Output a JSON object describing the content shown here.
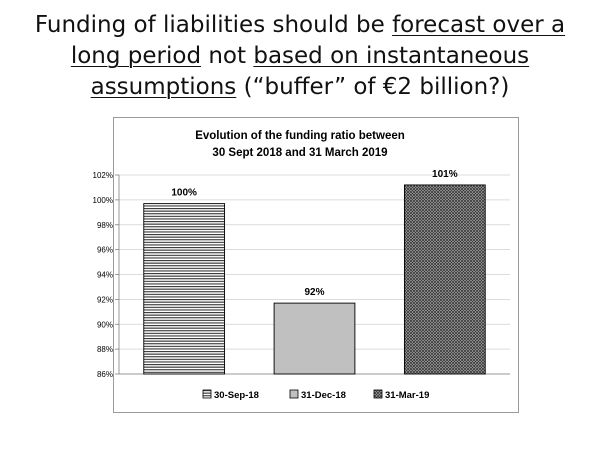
{
  "slide": {
    "title_parts": [
      {
        "text": "Funding of liabilities should be ",
        "u": false
      },
      {
        "text": "forecast over a long period",
        "u": true
      },
      {
        "text": " not ",
        "u": false
      },
      {
        "text": "based on instantaneous assumptions",
        "u": true
      },
      {
        "text": " (“buffer” of €2 billion?)",
        "u": false
      }
    ]
  },
  "chart_data": {
    "type": "bar",
    "title": "Evolution of the funding ratio between",
    "subtitle": "30 Sept 2018 and 31 March 2019",
    "categories": [
      "30-Sep-18",
      "31-Dec-18",
      "31-Mar-19"
    ],
    "values": [
      99.7,
      91.7,
      101.2
    ],
    "data_labels": [
      "100%",
      "92%",
      "101%"
    ],
    "ylim": [
      86,
      102
    ],
    "yticks": [
      86,
      88,
      90,
      92,
      94,
      96,
      98,
      100,
      102
    ],
    "ytick_labels": [
      "86%",
      "88%",
      "90%",
      "92%",
      "94%",
      "96%",
      "98%",
      "100%",
      "102%"
    ],
    "grid": true,
    "legend": {
      "position": "bottom",
      "entries": [
        "30-Sep-18",
        "31-Dec-18",
        "31-Mar-19"
      ]
    },
    "patterns": [
      "horizontal-stripes",
      "solid-light-gray",
      "dark-crosshatch"
    ],
    "colors": {
      "bar_outline": "#000000",
      "bar2_fill": "#c0c0c0",
      "grid": "#d0d0d0",
      "axis": "#808080"
    }
  }
}
